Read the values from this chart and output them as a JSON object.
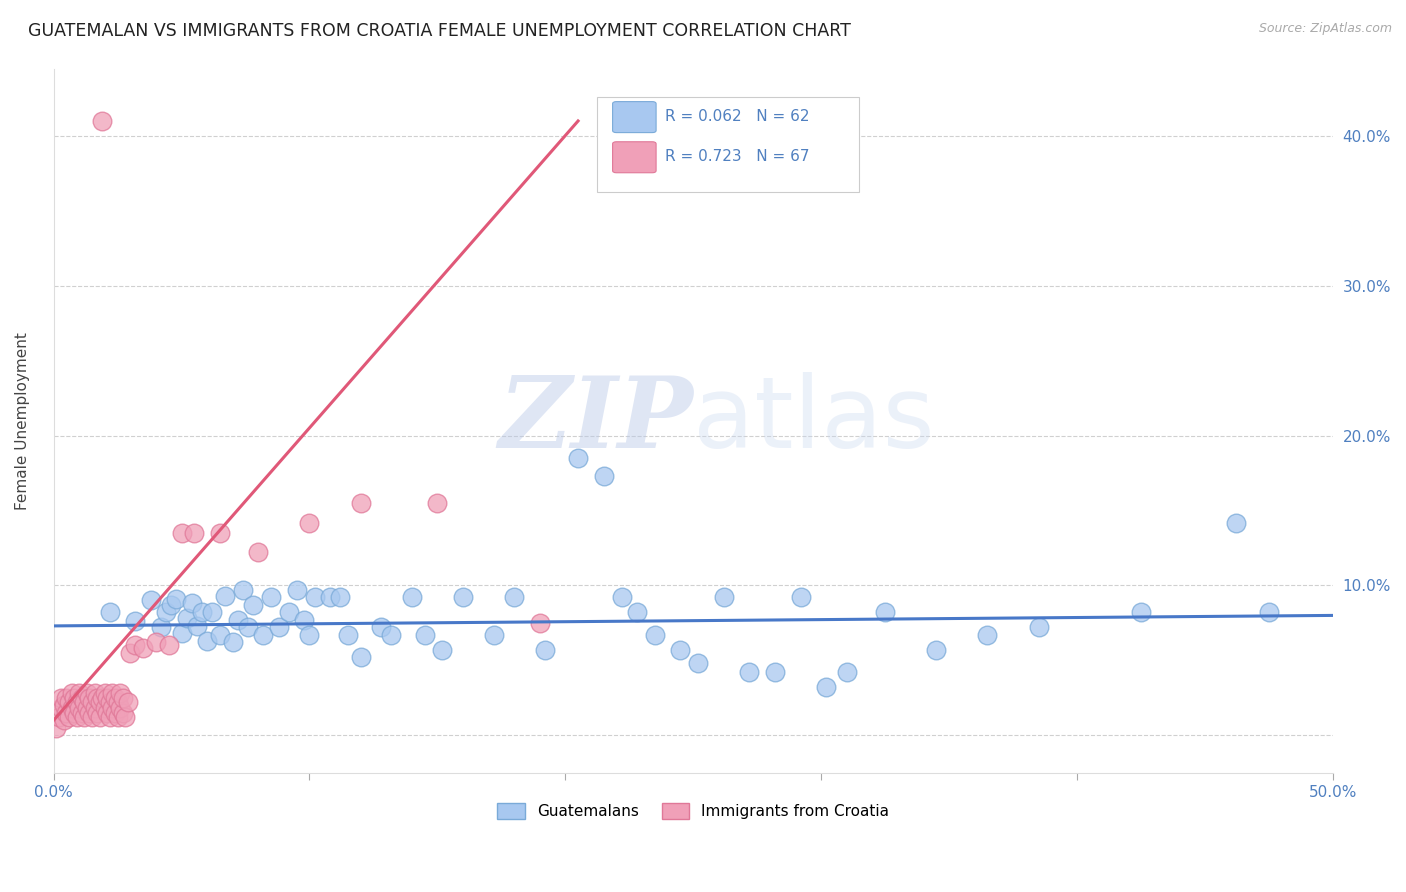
{
  "title": "GUATEMALAN VS IMMIGRANTS FROM CROATIA FEMALE UNEMPLOYMENT CORRELATION CHART",
  "source": "Source: ZipAtlas.com",
  "ylabel": "Female Unemployment",
  "xlim": [
    0.0,
    0.5
  ],
  "ylim": [
    -0.025,
    0.445
  ],
  "xtick_positions": [
    0.0,
    0.1,
    0.2,
    0.3,
    0.4,
    0.5
  ],
  "xticklabels": [
    "0.0%",
    "",
    "",
    "",
    "",
    "50.0%"
  ],
  "ytick_positions": [
    0.0,
    0.1,
    0.2,
    0.3,
    0.4
  ],
  "yticklabels": [
    "",
    "10.0%",
    "20.0%",
    "30.0%",
    "40.0%"
  ],
  "grid_color": "#d0d0d0",
  "background_color": "#ffffff",
  "blue_color": "#a8c8f0",
  "pink_color": "#f0a0b8",
  "blue_edge_color": "#7aaad8",
  "pink_edge_color": "#e07898",
  "blue_line_color": "#4878c8",
  "pink_line_color": "#e05878",
  "tick_color": "#5080c0",
  "ylabel_color": "#444444",
  "legend_r_blue": "R = 0.062",
  "legend_n_blue": "N = 62",
  "legend_r_pink": "R = 0.723",
  "legend_n_pink": "N = 67",
  "legend_label_blue": "Guatemalans",
  "legend_label_pink": "Immigrants from Croatia",
  "watermark_zip": "ZIP",
  "watermark_atlas": "atlas",
  "title_fontsize": 12.5,
  "label_fontsize": 11,
  "tick_fontsize": 11,
  "source_fontsize": 9,
  "blue_trend_x": [
    0.0,
    0.5
  ],
  "blue_trend_y": [
    0.073,
    0.08
  ],
  "pink_trend_x": [
    0.0,
    0.205
  ],
  "pink_trend_y": [
    0.01,
    0.41
  ],
  "blue_x": [
    0.022,
    0.032,
    0.038,
    0.042,
    0.044,
    0.046,
    0.048,
    0.05,
    0.052,
    0.054,
    0.056,
    0.058,
    0.06,
    0.062,
    0.065,
    0.067,
    0.07,
    0.072,
    0.074,
    0.076,
    0.078,
    0.082,
    0.085,
    0.088,
    0.092,
    0.095,
    0.098,
    0.1,
    0.102,
    0.108,
    0.112,
    0.115,
    0.12,
    0.128,
    0.132,
    0.14,
    0.145,
    0.152,
    0.16,
    0.172,
    0.18,
    0.192,
    0.205,
    0.215,
    0.222,
    0.228,
    0.235,
    0.245,
    0.252,
    0.262,
    0.272,
    0.282,
    0.292,
    0.302,
    0.31,
    0.325,
    0.345,
    0.365,
    0.385,
    0.425,
    0.462,
    0.475
  ],
  "blue_y": [
    0.082,
    0.076,
    0.09,
    0.072,
    0.082,
    0.087,
    0.091,
    0.068,
    0.078,
    0.088,
    0.073,
    0.082,
    0.063,
    0.082,
    0.067,
    0.093,
    0.062,
    0.077,
    0.097,
    0.072,
    0.087,
    0.067,
    0.092,
    0.072,
    0.082,
    0.097,
    0.077,
    0.067,
    0.092,
    0.092,
    0.092,
    0.067,
    0.052,
    0.072,
    0.067,
    0.092,
    0.067,
    0.057,
    0.092,
    0.067,
    0.092,
    0.057,
    0.185,
    0.173,
    0.092,
    0.082,
    0.067,
    0.057,
    0.048,
    0.092,
    0.042,
    0.042,
    0.092,
    0.032,
    0.042,
    0.082,
    0.057,
    0.067,
    0.072,
    0.082,
    0.142,
    0.082
  ],
  "pink_x": [
    0.001,
    0.002,
    0.003,
    0.003,
    0.004,
    0.004,
    0.005,
    0.005,
    0.006,
    0.006,
    0.007,
    0.007,
    0.008,
    0.008,
    0.009,
    0.009,
    0.01,
    0.01,
    0.011,
    0.011,
    0.012,
    0.012,
    0.013,
    0.013,
    0.014,
    0.014,
    0.015,
    0.015,
    0.016,
    0.016,
    0.017,
    0.017,
    0.018,
    0.018,
    0.019,
    0.019,
    0.02,
    0.02,
    0.021,
    0.021,
    0.022,
    0.022,
    0.023,
    0.023,
    0.024,
    0.024,
    0.025,
    0.025,
    0.026,
    0.026,
    0.027,
    0.027,
    0.028,
    0.029,
    0.03,
    0.032,
    0.035,
    0.04,
    0.045,
    0.05,
    0.055,
    0.065,
    0.08,
    0.1,
    0.12,
    0.15,
    0.19
  ],
  "pink_y": [
    0.005,
    0.012,
    0.018,
    0.025,
    0.01,
    0.02,
    0.015,
    0.025,
    0.012,
    0.022,
    0.018,
    0.028,
    0.015,
    0.025,
    0.012,
    0.022,
    0.018,
    0.028,
    0.015,
    0.025,
    0.012,
    0.022,
    0.018,
    0.028,
    0.015,
    0.025,
    0.012,
    0.022,
    0.018,
    0.028,
    0.015,
    0.025,
    0.012,
    0.022,
    0.41,
    0.025,
    0.018,
    0.028,
    0.015,
    0.025,
    0.012,
    0.022,
    0.018,
    0.028,
    0.015,
    0.025,
    0.012,
    0.022,
    0.018,
    0.028,
    0.015,
    0.025,
    0.012,
    0.022,
    0.055,
    0.06,
    0.058,
    0.062,
    0.06,
    0.135,
    0.135,
    0.135,
    0.122,
    0.142,
    0.155,
    0.155,
    0.075
  ]
}
